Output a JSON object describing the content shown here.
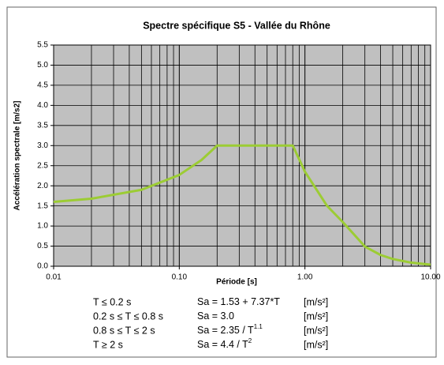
{
  "chart_data": {
    "type": "line",
    "title": "Spectre spécifique S5 - Vallée du Rhône",
    "xlabel": "Période [s]",
    "ylabel": "Accélération spectrale [m/s2]",
    "xscale": "log",
    "minor_grid": true,
    "grid": true,
    "x": [
      0.01,
      0.02,
      0.05,
      0.1,
      0.15,
      0.2,
      0.8,
      1.0,
      1.5,
      2.0,
      3.0,
      4.0,
      5.0,
      7.0,
      10.0
    ],
    "series": [
      {
        "name": "S5",
        "color": "#9ccc34",
        "values": [
          1.6,
          1.68,
          1.9,
          2.27,
          2.64,
          3.0,
          3.0,
          2.35,
          1.5,
          1.1,
          0.49,
          0.28,
          0.18,
          0.09,
          0.04
        ]
      }
    ],
    "xlim": [
      0.01,
      10
    ],
    "xticks": [
      0.01,
      {
        "value": 0.1,
        "label": "0.10"
      },
      {
        "value": 1,
        "label": "1.00"
      },
      {
        "value": 10,
        "label": "10.00"
      }
    ],
    "ylim": [
      0,
      5.5
    ],
    "yticks": [
      {
        "value": 0,
        "label": "0.0"
      },
      0.5,
      {
        "value": 1,
        "label": "1.0"
      },
      1.5,
      {
        "value": 2,
        "label": "2.0"
      },
      2.5,
      {
        "value": 3,
        "label": "3.0"
      },
      3.5,
      {
        "value": 4,
        "label": "4.0"
      },
      4.5,
      {
        "value": 5,
        "label": "5.0"
      },
      5.5
    ],
    "formulas": [
      {
        "condition": "T ≤ 0.2 s",
        "formula": "Sa = 1.53 + 7.37*T",
        "sup": null,
        "unit": "[m/s²]"
      },
      {
        "condition": "0.2 s ≤ T ≤ 0.8 s",
        "formula": "Sa = 3.0",
        "sup": null,
        "unit": "[m/s²]"
      },
      {
        "condition": "0.8 s ≤ T ≤ 2 s",
        "formula": "Sa = 2.35 / T",
        "sup": "1.1",
        "unit": "[m/s²]"
      },
      {
        "condition": "T ≥ 2 s",
        "formula": "Sa = 4.4 / T",
        "sup": "2",
        "unit": "[m/s²]"
      }
    ]
  }
}
